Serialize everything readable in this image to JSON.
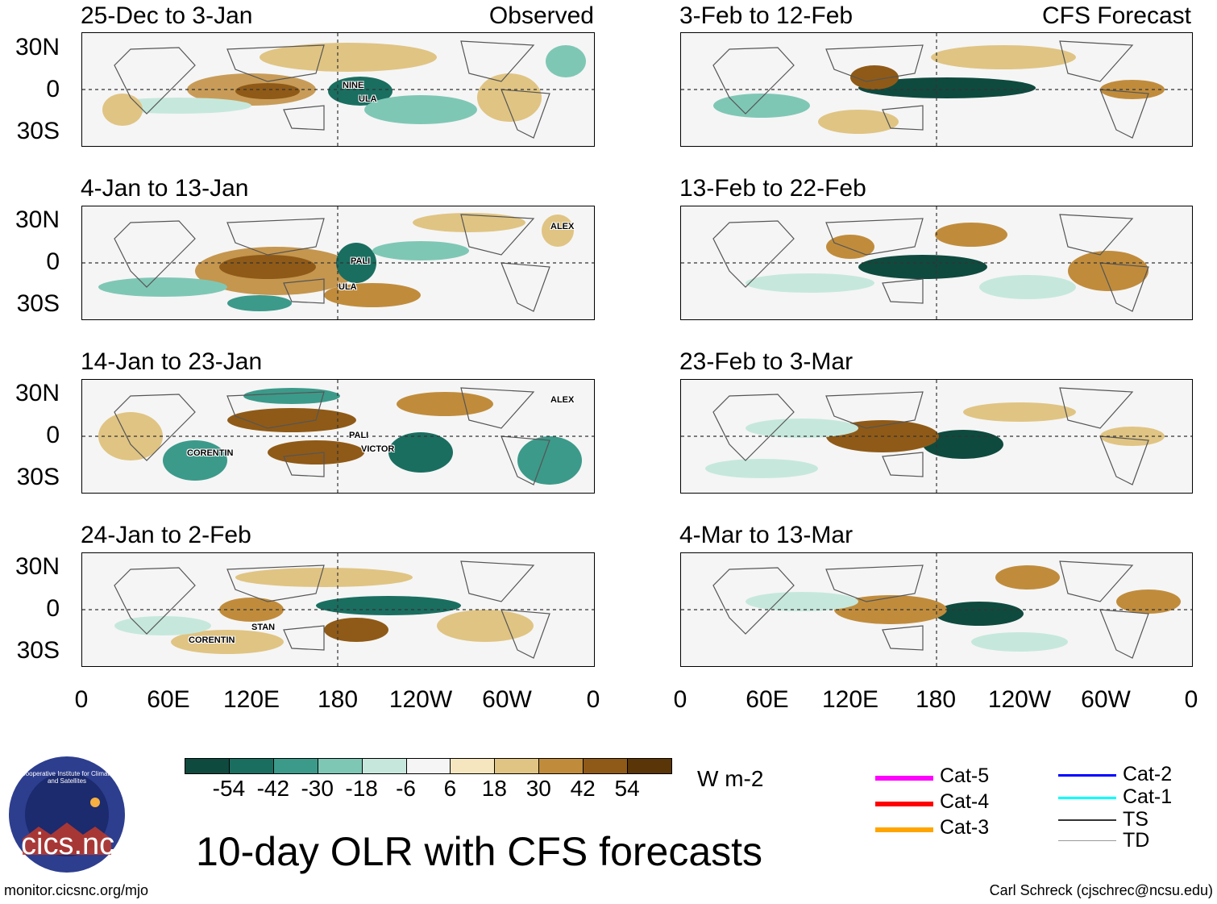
{
  "title": "10-day OLR with CFS forecasts",
  "left_header": "Observed",
  "right_header": "CFS Forecast",
  "lat_labels": [
    "30N",
    "0",
    "30S"
  ],
  "lon_labels": [
    "0",
    "60E",
    "120E",
    "180",
    "120W",
    "60W",
    "0"
  ],
  "panels": {
    "observed": [
      "25-Dec to 3-Jan",
      "4-Jan to 13-Jan",
      "14-Jan to 23-Jan",
      "24-Jan to 2-Feb"
    ],
    "forecast": [
      "3-Feb to 12-Feb",
      "13-Feb to 22-Feb",
      "23-Feb to 3-Mar",
      "4-Mar to 13-Mar"
    ]
  },
  "storms": {
    "p1": [
      "NINE",
      "ULA"
    ],
    "p2": [
      "ALEX",
      "PALI",
      "ULA"
    ],
    "p3": [
      "CORENTIN",
      "PALI",
      "VICTOR",
      "ALEX"
    ],
    "p4": [
      "STAN",
      "CORENTIN"
    ]
  },
  "colorbar": {
    "unit": "W m-2",
    "labels": [
      "-54",
      "-42",
      "-30",
      "-18",
      "-6",
      "6",
      "18",
      "30",
      "42",
      "54"
    ],
    "colors": [
      "#0f4a3f",
      "#1a6e60",
      "#3c9a8a",
      "#7fc7b5",
      "#c6e8dc",
      "#f5f5f5",
      "#f5e6bf",
      "#e0c483",
      "#c08c3c",
      "#8f5a17",
      "#5a3507"
    ]
  },
  "legend": [
    {
      "label": "Cat-5",
      "color": "#ff00ff"
    },
    {
      "label": "Cat-4",
      "color": "#ff0000"
    },
    {
      "label": "Cat-3",
      "color": "#ffa500"
    },
    {
      "label": "Cat-2",
      "color": "#0000ff"
    },
    {
      "label": "Cat-1",
      "color": "#00ffff"
    },
    {
      "label": "TS",
      "color": "#333333"
    },
    {
      "label": "TD",
      "color": "#999999"
    }
  ],
  "logo_text": "cics.nc",
  "logo_ring_text": "Cooperative Institute for Climate and Satellites",
  "footer_left": "monitor.cicsnc.org/mjo",
  "footer_right": "Carl Schreck (cjschrec@ncsu.edu)"
}
